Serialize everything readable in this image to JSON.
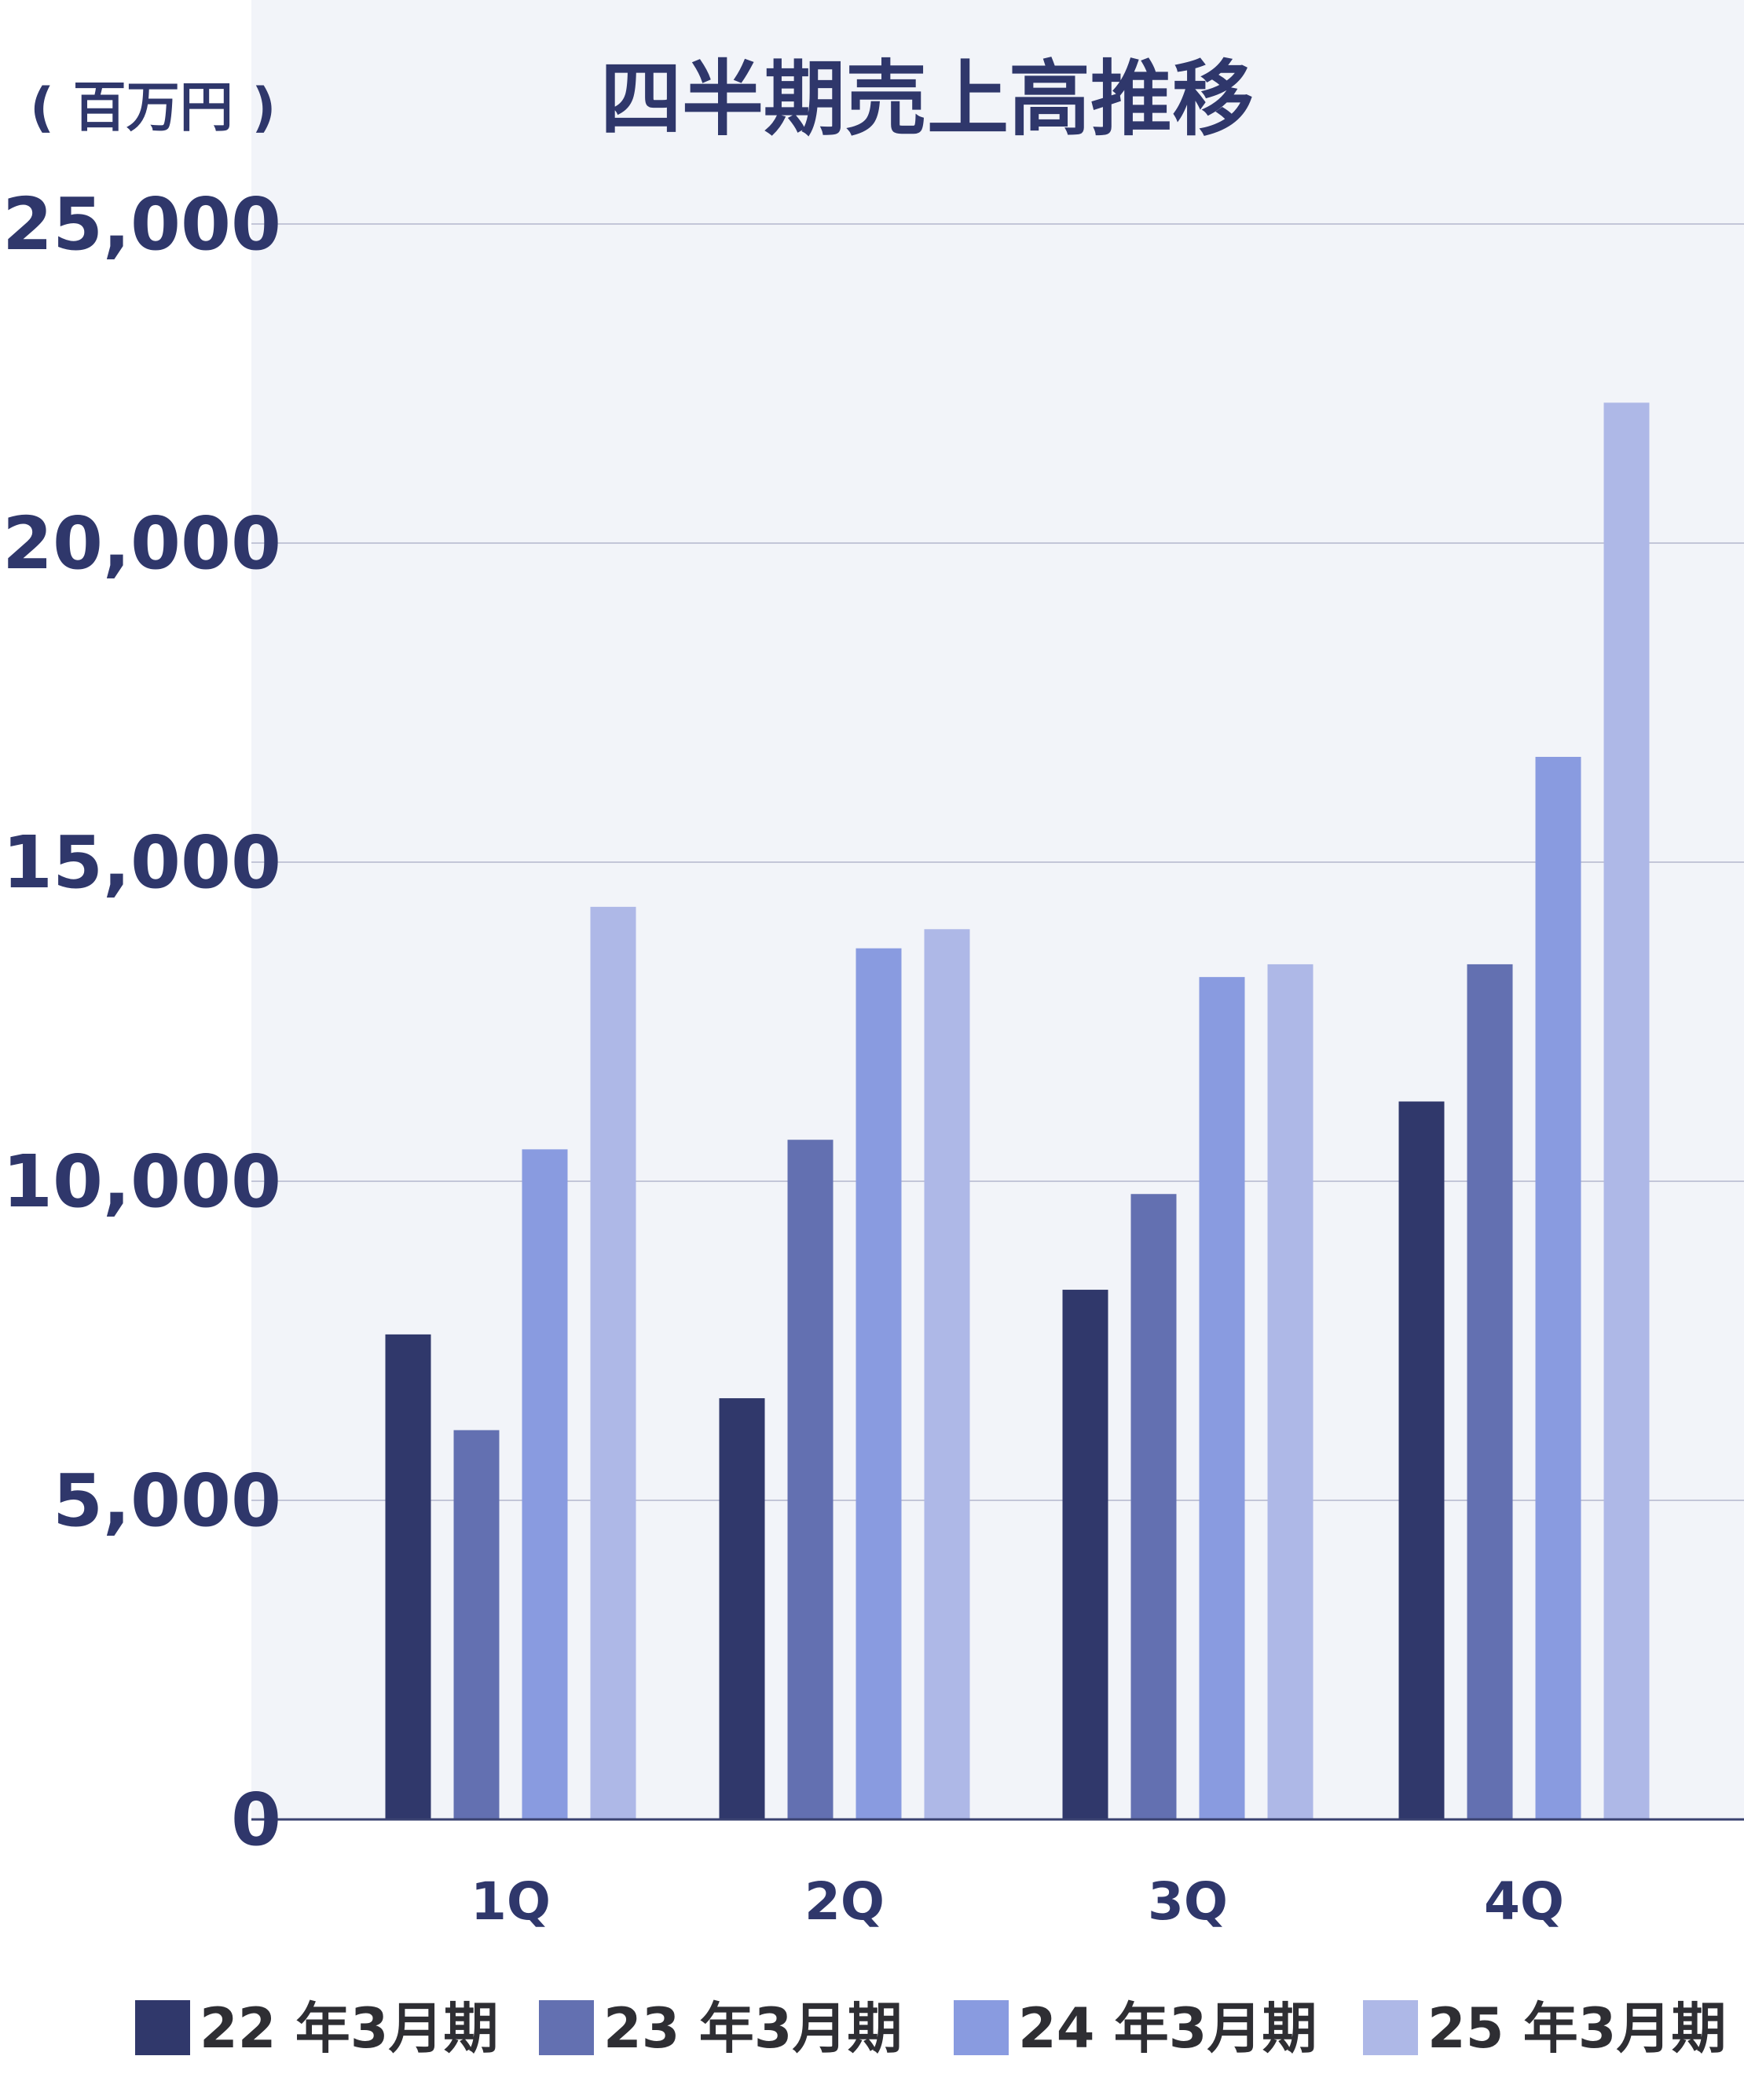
{
  "chart_data": {
    "type": "bar",
    "title": "四半期売上高推移",
    "unit_label": "( 百万円 )",
    "categories": [
      "1Q",
      "2Q",
      "3Q",
      "4Q"
    ],
    "series": [
      {
        "name": "22 年3月期",
        "color": "#30386b",
        "values": [
          7600,
          6600,
          8300,
          11250
        ]
      },
      {
        "name": "23 年3月期",
        "color": "#6370b1",
        "values": [
          6100,
          10650,
          9800,
          13400
        ]
      },
      {
        "name": "24 年3月期",
        "color": "#899be0",
        "values": [
          10500,
          13650,
          13200,
          16650
        ]
      },
      {
        "name": "25 年3月期",
        "color": "#aeb8e7",
        "values": [
          14300,
          13950,
          13400,
          22200
        ]
      }
    ],
    "ylim": [
      0,
      25000
    ],
    "yticks": [
      0,
      5000,
      10000,
      15000,
      20000,
      25000
    ],
    "ytick_labels": [
      "0",
      "5,000",
      "10,000",
      "15,000",
      "20,000",
      "25,000"
    ],
    "grid": true,
    "legend_position": "bottom",
    "colors": {
      "text": "#2f376b",
      "plot_background": "#f2f4f9",
      "gridline": "#c3c6d8",
      "baseline": "#3a4270"
    }
  }
}
